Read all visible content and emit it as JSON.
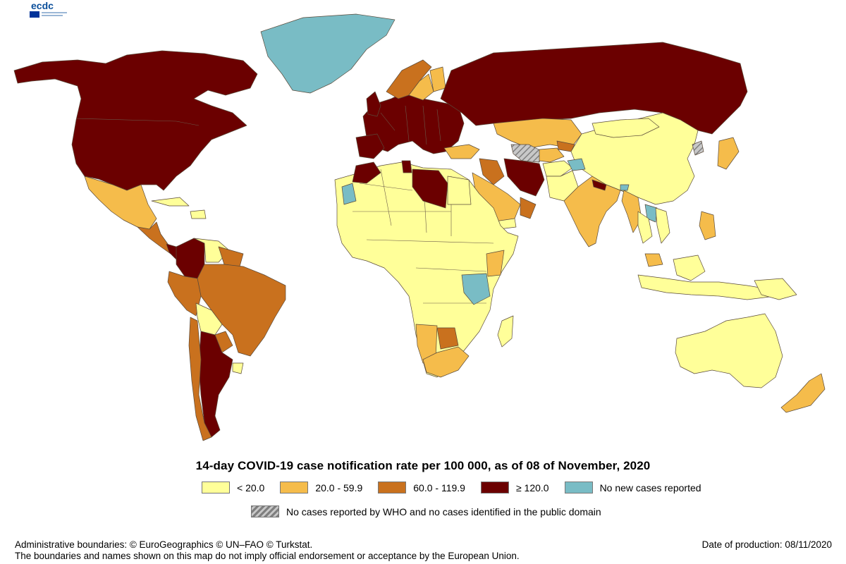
{
  "logo": {
    "text": "ecdc"
  },
  "title": "14-day COVID-19 case notification rate per 100 000, as of 08 of November, 2020",
  "colors": {
    "lt20": "#ffff99",
    "r20_59": "#f5bc4b",
    "r60_119": "#c9711e",
    "gte120": "#6b0000",
    "no_new": "#79bcc5",
    "hatch": "#8a8a8a",
    "ocean": "#ffffff"
  },
  "legend": {
    "items": [
      {
        "label": "< 20.0",
        "color": "#ffff99"
      },
      {
        "label": "20.0 - 59.9",
        "color": "#f5bc4b"
      },
      {
        "label": "60.0 - 119.9",
        "color": "#c9711e"
      },
      {
        "label": "≥ 120.0",
        "color": "#6b0000"
      },
      {
        "label": "No new cases reported",
        "color": "#79bcc5"
      }
    ],
    "hatched_label": "No cases reported by WHO and no cases identified in the public domain"
  },
  "footer": {
    "boundaries": "Administrative boundaries: © EuroGeographics © UN–FAO © Turkstat.",
    "disclaimer": "The boundaries and names shown on this map do not imply official endorsement or acceptance by the European Union.",
    "date": "Date of production: 08/11/2020"
  }
}
